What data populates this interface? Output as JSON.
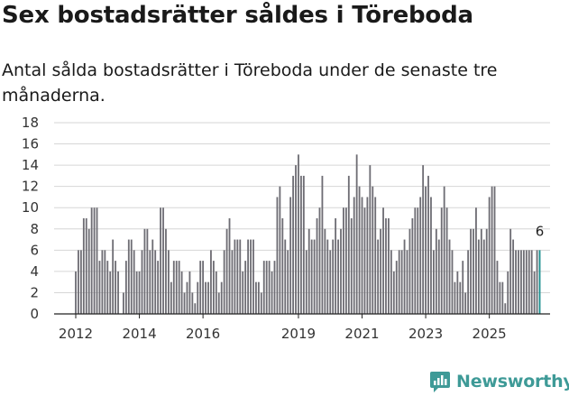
{
  "title": "Sex bostadsrätter såldes i Töreboda",
  "subtitle": "Antal sålda bostadsrätter i Töreboda under de senaste tre månaderna.",
  "brand": {
    "name": "Newsworthy",
    "icon": "newsworthy-logo-icon",
    "color": "#3e9a97"
  },
  "chart_data": {
    "type": "bar",
    "title": "Sex bostadsrätter såldes i Töreboda",
    "xlabel": "",
    "ylabel": "",
    "ylim": [
      0,
      18
    ],
    "yticks": [
      0,
      2,
      4,
      6,
      8,
      10,
      12,
      14,
      16,
      18
    ],
    "xtick_labels": [
      "2012",
      "2014",
      "2016",
      "2019",
      "2021",
      "2023",
      "2025"
    ],
    "xtick_years": [
      2012,
      2014,
      2016,
      2019,
      2021,
      2023,
      2025
    ],
    "x_start_year": 2012,
    "series_note": "rolling three-month totals, one bar per month",
    "colors": {
      "bar": "#6e6d74",
      "last_bar": "#1a8f8f"
    },
    "last_value_label": "6",
    "values": [
      4,
      6,
      6,
      9,
      9,
      8,
      10,
      10,
      10,
      5,
      6,
      6,
      5,
      4,
      7,
      5,
      4,
      0,
      2,
      5,
      7,
      7,
      6,
      4,
      4,
      6,
      8,
      8,
      6,
      7,
      6,
      5,
      10,
      10,
      8,
      6,
      3,
      5,
      5,
      5,
      4,
      2,
      3,
      4,
      2,
      1,
      3,
      5,
      5,
      3,
      3,
      6,
      5,
      4,
      2,
      3,
      6,
      8,
      9,
      6,
      7,
      7,
      7,
      4,
      5,
      7,
      7,
      7,
      3,
      3,
      2,
      5,
      5,
      5,
      4,
      5,
      11,
      12,
      9,
      7,
      6,
      11,
      13,
      14,
      15,
      13,
      13,
      6,
      8,
      7,
      7,
      9,
      10,
      13,
      8,
      7,
      6,
      7,
      9,
      7,
      8,
      10,
      10,
      13,
      9,
      11,
      15,
      12,
      11,
      10,
      11,
      14,
      12,
      11,
      7,
      8,
      10,
      9,
      9,
      6,
      4,
      5,
      6,
      6,
      7,
      6,
      8,
      9,
      10,
      10,
      11,
      14,
      12,
      13,
      11,
      6,
      8,
      7,
      10,
      12,
      10,
      7,
      6,
      3,
      4,
      3,
      5,
      2,
      6,
      8,
      8,
      10,
      7,
      8,
      7,
      8,
      11,
      12,
      12,
      5,
      3,
      3,
      1,
      4,
      8,
      7,
      6,
      6,
      6,
      6,
      6,
      6,
      6,
      4,
      6,
      6
    ]
  }
}
